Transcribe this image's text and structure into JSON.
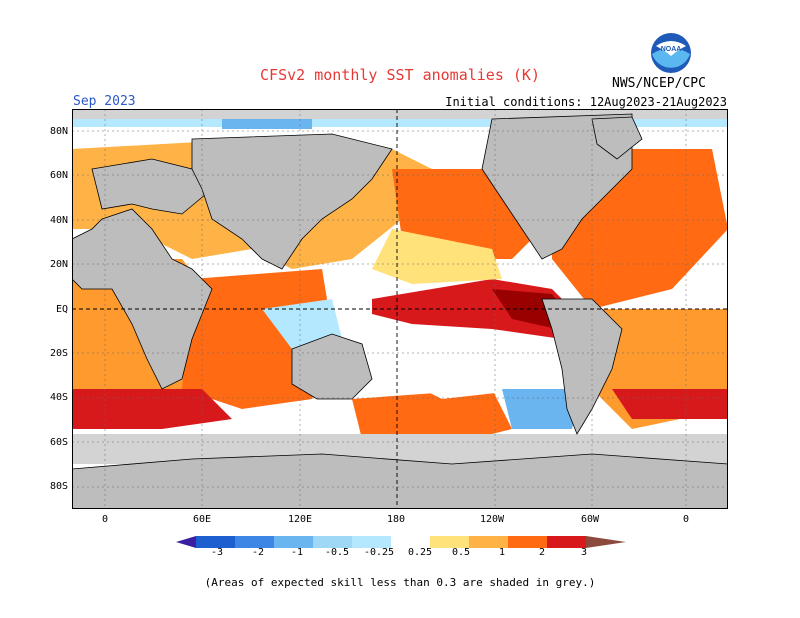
{
  "header": {
    "title": "CFSv2 monthly SST anomalies (K)",
    "valid_month": "Sep 2023",
    "initial_conditions": "Initial conditions: 12Aug2023-21Aug2023",
    "organization": "NWS/NCEP/CPC",
    "logo_text": "NOAA"
  },
  "map": {
    "lat_labels": [
      "80N",
      "60N",
      "40N",
      "20N",
      "EQ",
      "20S",
      "40S",
      "60S",
      "80S"
    ],
    "lon_labels": [
      "0",
      "60E",
      "120E",
      "180",
      "120W",
      "60W",
      "0"
    ],
    "colors": {
      "land": "#bdbdbd",
      "low_skill": "#d3d3d3",
      "warm_light": "#ffe27a",
      "warm_mid": "#ff9a2e",
      "warm": "#ff5c13",
      "warm_strong": "#d7191c",
      "warm_extreme": "#990000",
      "cool_light": "#b4e8ff",
      "cool_mid": "#6ab4f0"
    }
  },
  "colorbar": {
    "labels": [
      "-3",
      "-2",
      "-1",
      "-0.5",
      "-0.25",
      "0.25",
      "0.5",
      "1",
      "2",
      "3"
    ],
    "colors": [
      "#3b1fa3",
      "#1d5fcf",
      "#3d86e6",
      "#6ab4f0",
      "#b4e8ff",
      "#ffffff",
      "#ffe27a",
      "#ffb347",
      "#ff6a13",
      "#d7191c",
      "#990000",
      "#8b4a3c"
    ]
  },
  "footnote": "(Areas of expected skill less than 0.3 are shaded in grey.)"
}
